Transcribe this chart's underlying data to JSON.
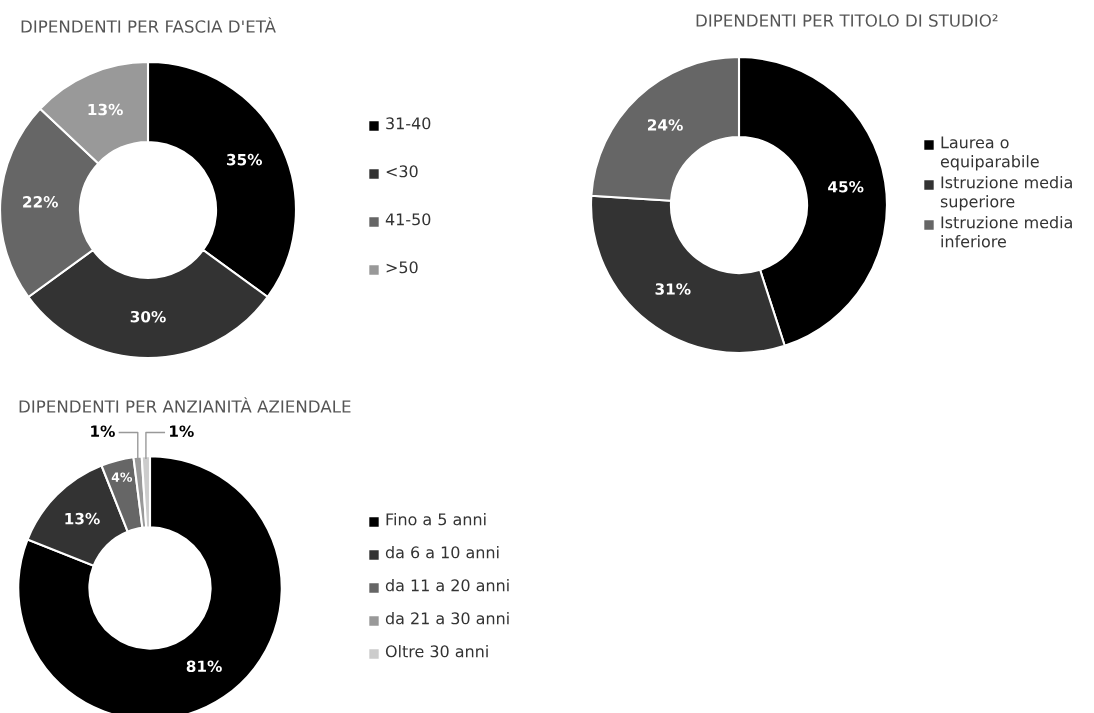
{
  "chart_data": [
    {
      "type": "donut",
      "title": "DIPENDENTI PER FASCIA D'ETÀ",
      "categories": [
        "31-40",
        "<30",
        "41-50",
        ">50"
      ],
      "values": [
        35,
        30,
        22,
        13
      ],
      "value_labels": [
        "35%",
        "30%",
        "22%",
        "13%"
      ],
      "colors": [
        "#000000",
        "#333333",
        "#666666",
        "#999999"
      ],
      "legend": "right"
    },
    {
      "type": "donut",
      "title": "DIPENDENTI PER TITOLO DI STUDIO²",
      "categories": [
        "Laurea o equiparabile",
        "Istruzione media superiore",
        "Istruzione media inferiore"
      ],
      "values": [
        45,
        31,
        24
      ],
      "value_labels": [
        "45%",
        "31%",
        "24%"
      ],
      "colors": [
        "#000000",
        "#333333",
        "#666666"
      ],
      "legend": "right"
    },
    {
      "type": "donut",
      "title": "DIPENDENTI PER ANZIANITÀ AZIENDALE",
      "categories": [
        "Fino a 5 anni",
        "da 6 a 10 anni",
        "da 11 a 20 anni",
        "da 21 a 30 anni",
        "Oltre 30 anni"
      ],
      "values": [
        81,
        13,
        4,
        1,
        1
      ],
      "value_labels": [
        "81%",
        "13%",
        "4%",
        "1%",
        "1%"
      ],
      "colors": [
        "#000000",
        "#333333",
        "#666666",
        "#999999",
        "#cccccc"
      ],
      "legend": "right"
    }
  ]
}
